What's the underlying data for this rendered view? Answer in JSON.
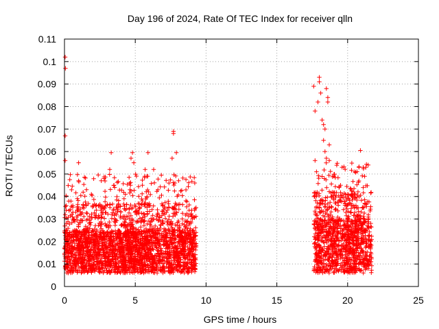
{
  "chart_data": {
    "type": "scatter",
    "title": "Day 196 of 2024, Rate Of TEC Index for receiver qlln",
    "xlabel": "GPS time / hours",
    "ylabel": "ROTI / TECUs",
    "xlim": [
      0,
      25
    ],
    "ylim": [
      0,
      0.11
    ],
    "xticks": [
      0,
      5,
      10,
      15,
      20,
      25
    ],
    "xtick_labels": [
      "0",
      "5",
      "10",
      "15",
      "20",
      "25"
    ],
    "yticks": [
      0,
      0.01,
      0.02,
      0.03,
      0.04,
      0.05,
      0.06,
      0.07,
      0.08,
      0.09,
      0.1,
      0.11
    ],
    "ytick_labels": [
      "0",
      "0.01",
      "0.02",
      "0.03",
      "0.04",
      "0.05",
      "0.06",
      "0.07",
      "0.08",
      "0.09",
      "0.1",
      "0.11"
    ],
    "grid": true,
    "marker": "+",
    "color": "#ff0000",
    "series": [
      {
        "name": "ROTI",
        "segments": [
          {
            "x_start": 0.0,
            "x_end": 9.3,
            "typical_low": 0.006,
            "typical_high": 0.025
          },
          {
            "x_start": 17.6,
            "x_end": 21.7,
            "typical_low": 0.006,
            "typical_high": 0.03
          }
        ],
        "peaks": [
          {
            "x": 0.05,
            "y": 0.102
          },
          {
            "x": 0.07,
            "y": 0.097
          },
          {
            "x": 0.05,
            "y": 0.067
          },
          {
            "x": 0.05,
            "y": 0.056
          },
          {
            "x": 1.0,
            "y": 0.055
          },
          {
            "x": 1.0,
            "y": 0.047
          },
          {
            "x": 0.5,
            "y": 0.043
          },
          {
            "x": 1.9,
            "y": 0.041
          },
          {
            "x": 2.6,
            "y": 0.047
          },
          {
            "x": 2.8,
            "y": 0.048
          },
          {
            "x": 3.3,
            "y": 0.0595
          },
          {
            "x": 3.2,
            "y": 0.052
          },
          {
            "x": 3.5,
            "y": 0.045
          },
          {
            "x": 4.3,
            "y": 0.041
          },
          {
            "x": 4.7,
            "y": 0.057
          },
          {
            "x": 4.8,
            "y": 0.0595
          },
          {
            "x": 4.9,
            "y": 0.055
          },
          {
            "x": 5.5,
            "y": 0.045
          },
          {
            "x": 5.7,
            "y": 0.052
          },
          {
            "x": 5.9,
            "y": 0.0595
          },
          {
            "x": 6.3,
            "y": 0.052
          },
          {
            "x": 6.6,
            "y": 0.043
          },
          {
            "x": 7.6,
            "y": 0.057
          },
          {
            "x": 7.7,
            "y": 0.069
          },
          {
            "x": 7.7,
            "y": 0.068
          },
          {
            "x": 7.9,
            "y": 0.0595
          },
          {
            "x": 7.8,
            "y": 0.046
          },
          {
            "x": 9.2,
            "y": 0.046
          },
          {
            "x": 17.6,
            "y": 0.089
          },
          {
            "x": 17.7,
            "y": 0.078
          },
          {
            "x": 17.9,
            "y": 0.082
          },
          {
            "x": 18.0,
            "y": 0.093
          },
          {
            "x": 18.0,
            "y": 0.091
          },
          {
            "x": 18.1,
            "y": 0.086
          },
          {
            "x": 18.2,
            "y": 0.074
          },
          {
            "x": 18.3,
            "y": 0.072
          },
          {
            "x": 18.4,
            "y": 0.07
          },
          {
            "x": 18.5,
            "y": 0.088
          },
          {
            "x": 18.6,
            "y": 0.082
          },
          {
            "x": 18.6,
            "y": 0.084
          },
          {
            "x": 18.3,
            "y": 0.065
          },
          {
            "x": 18.4,
            "y": 0.06
          },
          {
            "x": 18.7,
            "y": 0.063
          },
          {
            "x": 18.5,
            "y": 0.057
          },
          {
            "x": 18.7,
            "y": 0.056
          },
          {
            "x": 17.7,
            "y": 0.056
          },
          {
            "x": 17.8,
            "y": 0.051
          },
          {
            "x": 19.5,
            "y": 0.045
          },
          {
            "x": 20.5,
            "y": 0.051
          },
          {
            "x": 20.8,
            "y": 0.053
          },
          {
            "x": 20.9,
            "y": 0.0605
          },
          {
            "x": 21.1,
            "y": 0.053
          },
          {
            "x": 21.2,
            "y": 0.049
          },
          {
            "x": 21.1,
            "y": 0.044
          }
        ]
      }
    ]
  }
}
